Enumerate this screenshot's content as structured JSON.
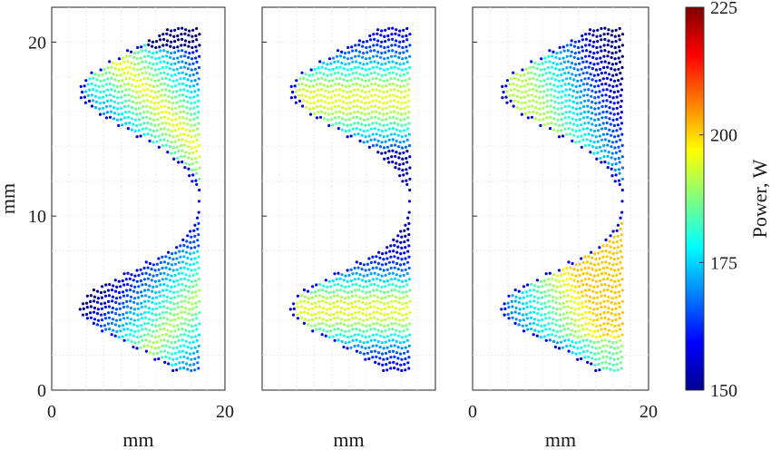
{
  "chart_data": {
    "type": "scatter",
    "panels": [
      {
        "name": "panel-1",
        "xlabel": "mm",
        "ylabel": "mm",
        "xlim": [
          0,
          20
        ],
        "ylim": [
          0,
          22
        ],
        "xticks": [
          "0",
          "20"
        ],
        "yticks": [
          "0",
          "10",
          "20"
        ],
        "grid": true,
        "shape": "double-lobe-left-concave",
        "gradient": "diagonal: top lobe hot near left edge/lower side, cooler toward top-right; bottom lobe warm toward lower-right"
      },
      {
        "name": "panel-2",
        "xlabel": "mm",
        "ylabel": "",
        "xlim": [
          0,
          20
        ],
        "ylim": [
          0,
          22
        ],
        "xticks": [],
        "yticks": [],
        "grid": true,
        "shape": "double-lobe-left-concave",
        "gradient": "horizontal bands: lobes' middle bands green-yellow, waist dark blue"
      },
      {
        "name": "panel-3",
        "xlabel": "mm",
        "ylabel": "",
        "xlim": [
          0,
          20
        ],
        "ylim": [
          0,
          22
        ],
        "xticks": [
          "0",
          "20"
        ],
        "yticks": [],
        "grid": true,
        "shape": "double-lobe-left-concave",
        "gradient": "top lobe green-yellow fading to blue at bottom-right; bottom lobe orange upper-right fading to blue at lower-left"
      }
    ],
    "colorbar": {
      "label": "Power, W",
      "range": [
        150,
        225
      ],
      "ticks": [
        "150",
        "175",
        "200",
        "225"
      ],
      "colormap": "jet"
    }
  }
}
